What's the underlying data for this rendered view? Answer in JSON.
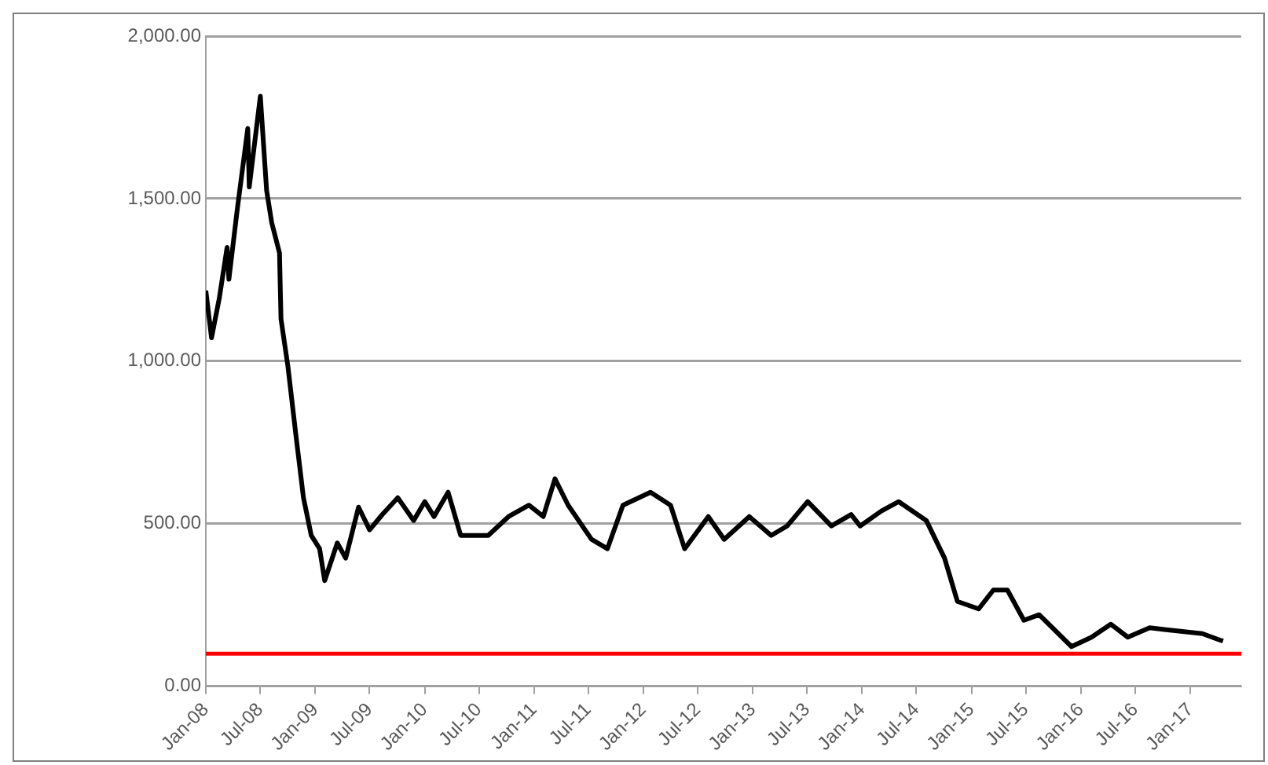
{
  "chart_data": {
    "type": "line",
    "x": [
      "2008-01-01",
      "2008-01-20",
      "2008-02-15",
      "2008-03-12",
      "2008-03-18",
      "2008-04-15",
      "2008-05-20",
      "2008-05-25",
      "2008-07-01",
      "2008-07-22",
      "2008-08-08",
      "2008-09-03",
      "2008-09-08",
      "2008-10-01",
      "2008-10-28",
      "2008-11-22",
      "2008-12-18",
      "2009-01-15",
      "2009-02-01",
      "2009-03-15",
      "2009-04-12",
      "2009-05-25",
      "2009-07-01",
      "2009-08-12",
      "2009-10-03",
      "2009-11-25",
      "2010-01-01",
      "2010-02-01",
      "2010-03-20",
      "2010-05-01",
      "2010-08-01",
      "2010-10-08",
      "2010-12-15",
      "2011-02-01",
      "2011-03-12",
      "2011-04-25",
      "2011-07-12",
      "2011-09-03",
      "2011-10-25",
      "2012-01-25",
      "2012-04-01",
      "2012-05-18",
      "2012-08-05",
      "2012-09-27",
      "2012-12-20",
      "2013-03-03",
      "2013-04-25",
      "2013-07-03",
      "2013-09-20",
      "2013-11-25",
      "2013-12-25",
      "2014-03-06",
      "2014-05-03",
      "2014-08-03",
      "2014-10-03",
      "2014-11-15",
      "2015-01-25",
      "2015-03-15",
      "2015-05-01",
      "2015-06-25",
      "2015-08-15",
      "2015-12-01",
      "2016-02-06",
      "2016-04-10",
      "2016-06-06",
      "2016-08-18",
      "2016-10-12",
      "2017-02-10",
      "2017-04-01",
      "2017-04-20"
    ],
    "series": [
      {
        "color": "#000000",
        "values": [
          1217,
          1072,
          1194,
          1350,
          1252,
          1467,
          1716,
          1536,
          1815,
          1525,
          1426,
          1333,
          1130,
          985,
          771,
          580,
          464,
          423,
          325,
          441,
          394,
          551,
          481,
          528,
          580,
          510,
          568,
          522,
          597,
          464,
          464,
          522,
          557,
          522,
          638,
          557,
          452,
          423,
          557,
          597,
          557,
          423,
          522,
          452,
          522,
          464,
          493,
          568,
          493,
          528,
          493,
          539,
          568,
          510,
          394,
          261,
          238,
          296,
          296,
          203,
          220,
          122,
          151,
          191,
          151,
          180,
          174,
          162,
          145,
          139
        ]
      }
    ],
    "xlim": [
      "2008-01-01",
      "2017-06-20"
    ],
    "xticks": [
      {
        "value": "2008-01",
        "label": "Jan-08"
      },
      {
        "value": "2008-07",
        "label": "Jul-08"
      },
      {
        "value": "2009-01",
        "label": "Jan-09"
      },
      {
        "value": "2009-07",
        "label": "Jul-09"
      },
      {
        "value": "2010-01",
        "label": "Jan-10"
      },
      {
        "value": "2010-07",
        "label": "Jul-10"
      },
      {
        "value": "2011-01",
        "label": "Jan-11"
      },
      {
        "value": "2011-07",
        "label": "Jul-11"
      },
      {
        "value": "2012-01",
        "label": "Jan-12"
      },
      {
        "value": "2012-07",
        "label": "Jul-12"
      },
      {
        "value": "2013-01",
        "label": "Jan-13"
      },
      {
        "value": "2013-07",
        "label": "Jul-13"
      },
      {
        "value": "2014-01",
        "label": "Jan-14"
      },
      {
        "value": "2014-07",
        "label": "Jul-14"
      },
      {
        "value": "2015-01",
        "label": "Jan-15"
      },
      {
        "value": "2015-07",
        "label": "Jul-15"
      },
      {
        "value": "2016-01",
        "label": "Jan-16"
      },
      {
        "value": "2016-07",
        "label": "Jul-16"
      },
      {
        "value": "2017-01",
        "label": "Jan-17"
      }
    ],
    "ylim": [
      0,
      2000
    ],
    "yticks": [
      {
        "value": 0,
        "label": "0.00"
      },
      {
        "value": 500,
        "label": "500.00"
      },
      {
        "value": 1000,
        "label": "1,000.00"
      },
      {
        "value": 1500,
        "label": "1,500.00"
      },
      {
        "value": 2000,
        "label": "2,000.00"
      }
    ],
    "ref_lines": [
      {
        "axis": "y",
        "value": 100,
        "color": "#ff0000"
      }
    ],
    "grid": "y",
    "marker": "none",
    "line_style": "solid",
    "legend": false
  }
}
